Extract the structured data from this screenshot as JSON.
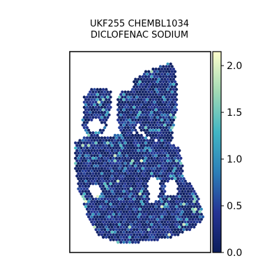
{
  "chart_data": {
    "type": "heatmap",
    "subtype": "spatial-spot-map",
    "title_lines": [
      "UKF255 CHEMBL1034",
      "DICLOFENAC SODIUM"
    ],
    "xlabel": "",
    "ylabel": "",
    "axis_ticks_shown": false,
    "grid": false,
    "colormap": "YlGnBu",
    "colormap_stops": [
      "#0b1d5b",
      "#253494",
      "#2c7fb8",
      "#41b6c4",
      "#a1dab4",
      "#ffffcc"
    ],
    "colorbar": {
      "placement": "right",
      "range": [
        0.0,
        2.15
      ],
      "ticks": [
        0.0,
        0.5,
        1.0,
        1.5,
        2.0
      ],
      "tick_labels": [
        "0.0",
        "0.5",
        "1.0",
        "1.5",
        "2.0"
      ]
    },
    "value_summary": {
      "typical_range": [
        0.0,
        0.5
      ],
      "max_observed": 2.0
    }
  }
}
